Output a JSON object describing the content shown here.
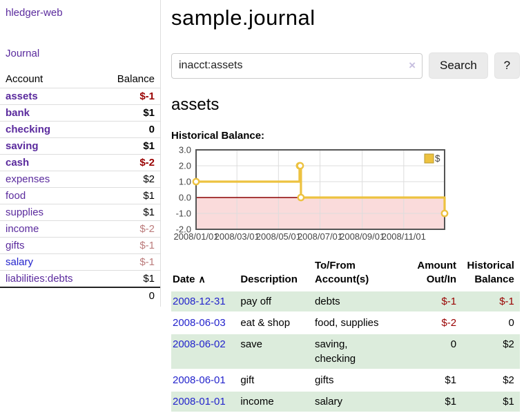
{
  "app": {
    "title": "hledger-web",
    "nav_journal": "Journal"
  },
  "sidebar": {
    "headers": {
      "account": "Account",
      "balance": "Balance"
    },
    "accounts": [
      {
        "name": "assets",
        "balance": "$-1"
      },
      {
        "name": "bank",
        "balance": "$1"
      },
      {
        "name": "checking",
        "balance": "0"
      },
      {
        "name": "saving",
        "balance": "$1"
      },
      {
        "name": "cash",
        "balance": "$-2"
      },
      {
        "name": "expenses",
        "balance": "$2"
      },
      {
        "name": "food",
        "balance": "$1"
      },
      {
        "name": "supplies",
        "balance": "$1"
      },
      {
        "name": "income",
        "balance": "$-2"
      },
      {
        "name": "gifts",
        "balance": "$-1"
      },
      {
        "name": "salary",
        "balance": "$-1"
      },
      {
        "name": "liabilities:debts",
        "balance": "$1"
      }
    ],
    "total": "0"
  },
  "header": {
    "title": "sample.journal"
  },
  "search": {
    "query": "inacct:assets",
    "clear_icon": "×",
    "search_button": "Search",
    "help_button": "?"
  },
  "main": {
    "account_heading": "assets",
    "chart_title": "Historical Balance:"
  },
  "chart_data": {
    "type": "line",
    "step": true,
    "title": "Historical Balance:",
    "series": [
      {
        "name": "$",
        "color": "#edc240",
        "points": [
          [
            "2008-01-01",
            1
          ],
          [
            "2008-06-01",
            2
          ],
          [
            "2008-06-02",
            2
          ],
          [
            "2008-06-03",
            0
          ],
          [
            "2008-12-31",
            -1
          ]
        ]
      }
    ],
    "x_range": [
      "2008-01-01",
      "2008-12-31"
    ],
    "ylim": [
      -2,
      3
    ],
    "x_ticks": [
      "2008/01/01",
      "2008/03/01",
      "2008/05/01",
      "2008/07/01",
      "2008/09/01",
      "2008/11/01"
    ],
    "y_ticks": [
      3.0,
      2.0,
      1.0,
      0.0,
      -1.0,
      -2.0
    ],
    "grid": true,
    "legend_position": "top-right",
    "zero_line_color": "#8b0000",
    "negative_fill": "#fadbdb",
    "grid_color": "#dddddd",
    "border_color": "#545454",
    "tick_label_color": "#444444"
  },
  "table": {
    "headers": [
      "Date",
      "Description",
      "To/From\nAccount(s)",
      "Amount\nOut/In",
      "Historical\nBalance"
    ],
    "sort_asc_icon": "∧",
    "rows": [
      {
        "date": "2008-12-31",
        "description": "pay off",
        "accounts": "debts",
        "amount": "$-1",
        "balance": "$-1"
      },
      {
        "date": "2008-06-03",
        "description": "eat & shop",
        "accounts": "food, supplies",
        "amount": "$-2",
        "balance": "0"
      },
      {
        "date": "2008-06-02",
        "description": "save",
        "accounts": "saving,\nchecking",
        "amount": "0",
        "balance": "$2"
      },
      {
        "date": "2008-06-01",
        "description": "gift",
        "accounts": "gifts",
        "amount": "$1",
        "balance": "$2"
      },
      {
        "date": "2008-01-01",
        "description": "income",
        "accounts": "salary",
        "amount": "$1",
        "balance": "$1"
      }
    ]
  }
}
